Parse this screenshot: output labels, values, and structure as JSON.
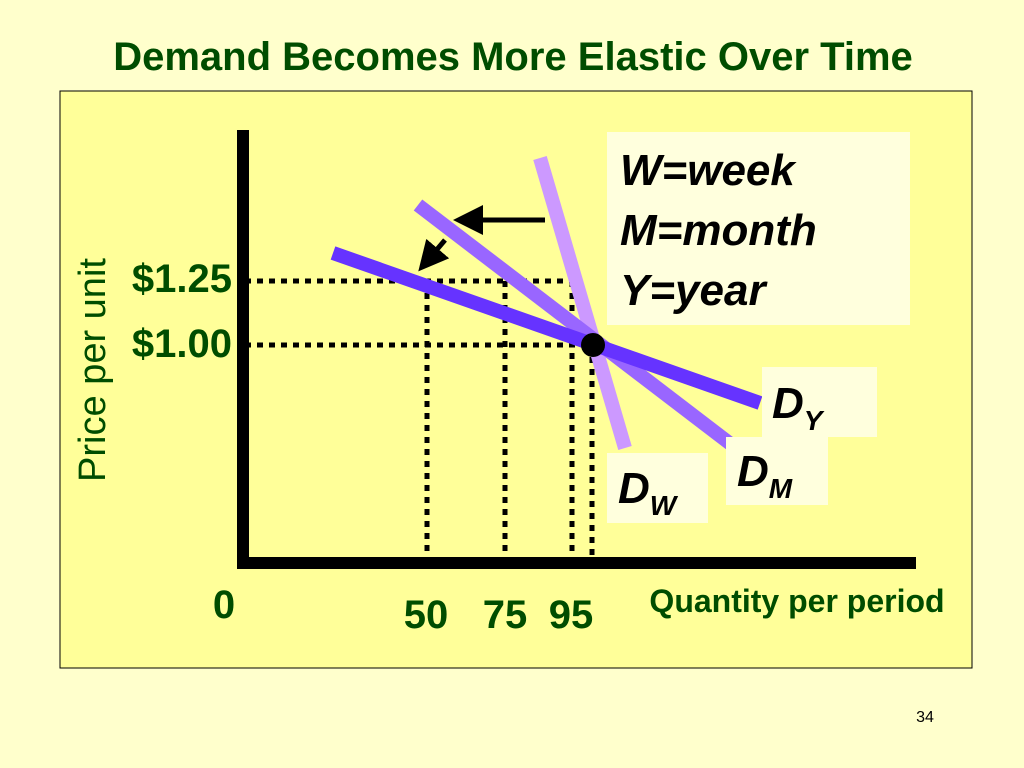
{
  "header": {
    "title": "Demand Becomes More Elastic Over Time"
  },
  "axes": {
    "y_label": "Price per unit",
    "x_label": "Quantity per period",
    "origin": "0",
    "y_ticks": [
      "$1.25",
      "$1.00"
    ],
    "x_ticks": [
      "50",
      "75",
      "95"
    ]
  },
  "legend": [
    "W=week",
    "M=month",
    "Y=year"
  ],
  "curves": [
    {
      "label": "D",
      "subscript": "Y"
    },
    {
      "label": "D",
      "subscript": "M"
    },
    {
      "label": "D",
      "subscript": "W"
    }
  ],
  "footer": {
    "page_number": "34"
  }
}
